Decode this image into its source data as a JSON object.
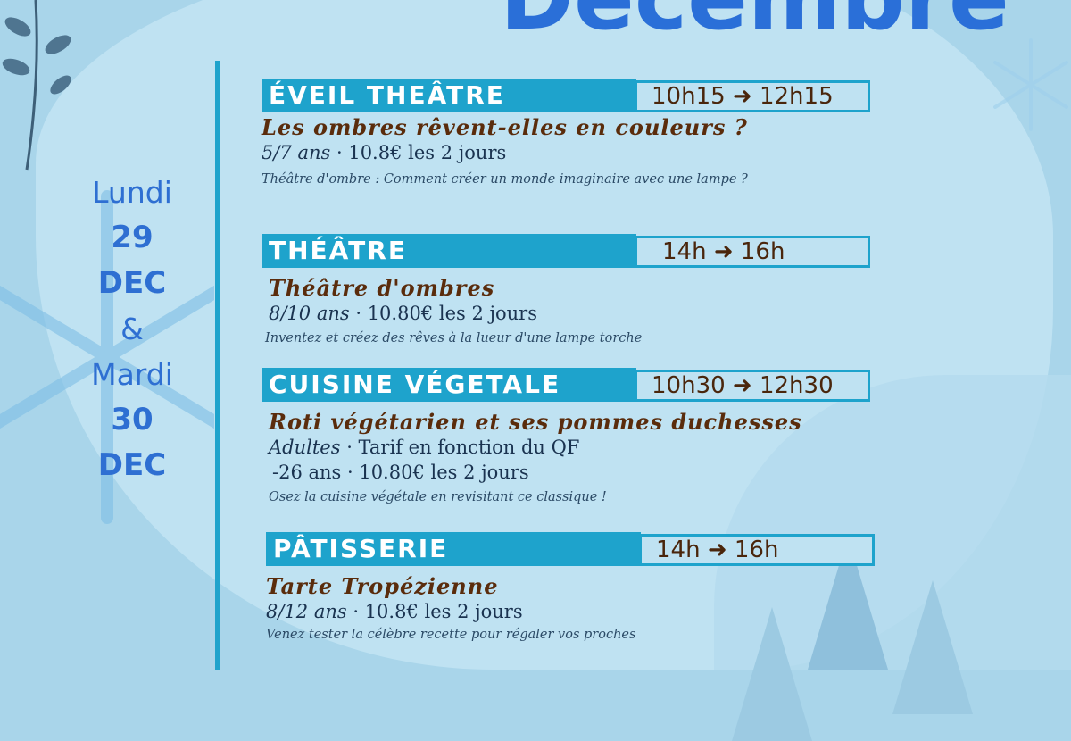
{
  "header": {
    "title": "Décembre"
  },
  "dates": {
    "day1": "Lundi",
    "num1": "29",
    "month1": "DEC",
    "and": "&",
    "day2": "Mardi",
    "num2": "30",
    "month2": "DEC"
  },
  "colors": {
    "bar": "#1ea3cc",
    "title": "#2a6fd8",
    "brown": "#5a2c0c",
    "background": "#a9d5ea"
  },
  "activities": [
    {
      "category": "ÉVEIL THEÂTRE",
      "time": "10h15 ➜ 12h15",
      "title": "Les ombres rêvent-elles en couleurs ?",
      "age": "5/7 ans",
      "price": "· 10.8€ les 2 jours",
      "description": "Théâtre d'ombre : Comment créer un monde imaginaire avec une lampe ?"
    },
    {
      "category": "THÉÂTRE",
      "time": "14h ➜ 16h",
      "title": "Théâtre d'ombres",
      "age": "8/10 ans",
      "price": "· 10.80€ les 2 jours",
      "description": "Inventez et créez des rêves à la lueur d'une lampe torche"
    },
    {
      "category": "CUISINE VÉGETALE",
      "time": "10h30 ➜ 12h30",
      "title": "Roti végétarien et ses pommes duchesses",
      "age": "Adultes",
      "price": "· Tarif en fonction du QF",
      "age2": "-26 ans · 10.80€ les 2 jours",
      "description": "Osez la cuisine végétale en revisitant ce classique !"
    },
    {
      "category": "PÂTISSERIE",
      "time": "14h ➜ 16h",
      "title": "Tarte Tropézienne",
      "age": "8/12 ans",
      "price": "· 10.8€ les 2 jours",
      "description": "Venez tester la célèbre recette pour régaler vos proches"
    }
  ]
}
